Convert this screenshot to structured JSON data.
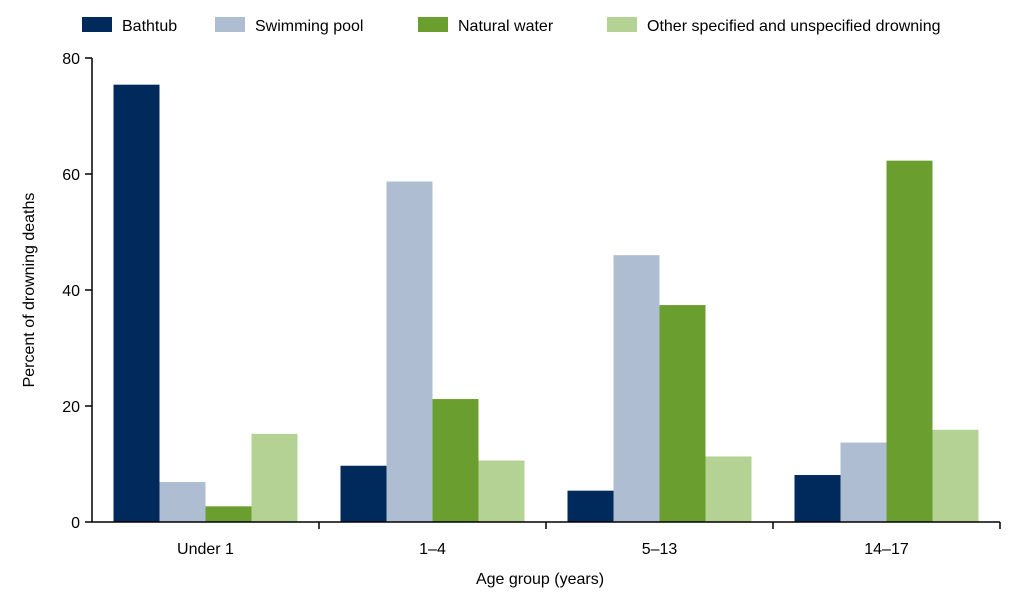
{
  "chart_data": {
    "type": "bar",
    "title": "",
    "xlabel": "Age group (years)",
    "ylabel": "Percent of drowning deaths",
    "categories": [
      "Under 1",
      "1–4",
      "5–13",
      "14–17"
    ],
    "ylim": [
      0,
      80
    ],
    "yticks": [
      0,
      20,
      40,
      60,
      80
    ],
    "ytick_labels": [
      "0",
      "20",
      "40",
      "60",
      "80"
    ],
    "grid": false,
    "legend_position": "top",
    "series": [
      {
        "name": "Bathtub",
        "color": "#002a5c",
        "values": [
          75.4,
          9.7,
          5.4,
          8.1
        ]
      },
      {
        "name": "Swimming pool",
        "color": "#aebdd1",
        "values": [
          6.9,
          58.7,
          46.0,
          13.7
        ]
      },
      {
        "name": "Natural water",
        "color": "#6a9e2f",
        "values": [
          2.7,
          21.2,
          37.4,
          62.3
        ]
      },
      {
        "name": "Other specified and unspecified drowning",
        "color": "#b5d295",
        "values": [
          15.2,
          10.6,
          11.3,
          15.9
        ]
      }
    ]
  }
}
